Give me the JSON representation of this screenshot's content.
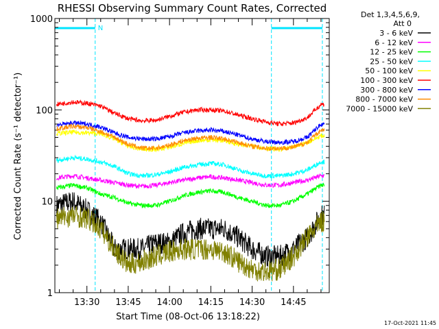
{
  "chart_data": {
    "type": "line",
    "title": "RHESSI Observing Summary Count Rates, Corrected",
    "xlabel": "Start Time (08-Oct-06 13:18:22)",
    "ylabel": "Corrected Count Rate (s⁻¹ detector⁻¹)",
    "yscale": "log",
    "ylim": [
      1,
      1000
    ],
    "xlim": [
      "13:18:22",
      "14:58:00"
    ],
    "x_tick_labels": [
      "13:30",
      "13:45",
      "14:00",
      "14:15",
      "14:30",
      "14:45"
    ],
    "y_tick_labels": [
      "1",
      "10",
      "100",
      "1000"
    ],
    "legend_position": "top-right",
    "legend_header": [
      "Det 1,3,4,5,6,9,",
      "Att 0"
    ],
    "footer_date": "17-Oct-2021 11:45",
    "annotations": [
      {
        "label": "N",
        "time": "13:33:00"
      }
    ],
    "night_intervals": [
      {
        "start": "13:18:22",
        "end": "13:33:00"
      },
      {
        "start": "14:37:00",
        "end": "14:55:30"
      }
    ],
    "x": [
      "13:19",
      "13:25",
      "13:30",
      "13:35",
      "13:40",
      "13:45",
      "13:50",
      "13:55",
      "14:00",
      "14:05",
      "14:10",
      "14:15",
      "14:20",
      "14:25",
      "14:30",
      "14:35",
      "14:40",
      "14:45",
      "14:50",
      "14:55"
    ],
    "series": [
      {
        "name": "3 - 6 keV",
        "color": "#000000",
        "values": [
          9,
          10,
          8,
          6,
          3,
          3,
          3,
          3.5,
          3.5,
          4.5,
          5,
          5,
          5,
          4,
          3,
          2.5,
          2.5,
          3,
          4,
          7
        ]
      },
      {
        "name": "6 - 12 keV",
        "color": "#ff00ff",
        "values": [
          18,
          19,
          18,
          17,
          16,
          15,
          14.5,
          15,
          16,
          17,
          18,
          18.5,
          18,
          17,
          16,
          15,
          15,
          16,
          17,
          19
        ]
      },
      {
        "name": "12 - 25 keV",
        "color": "#00ff00",
        "values": [
          14,
          15,
          14,
          12,
          11,
          9.5,
          9,
          9,
          10,
          11.5,
          12.5,
          13,
          12.5,
          11,
          10,
          9,
          9,
          10,
          12,
          15
        ]
      },
      {
        "name": "25 - 50 keV",
        "color": "#00ffff",
        "values": [
          28,
          30,
          29,
          27,
          24,
          20,
          19,
          19.5,
          21,
          23.5,
          25,
          26,
          25,
          22,
          20,
          19,
          19,
          20,
          22,
          27
        ]
      },
      {
        "name": "50 - 100 keV",
        "color": "#ffff00",
        "values": [
          55,
          57,
          56,
          55,
          48,
          40,
          37,
          37,
          39,
          43,
          46,
          47,
          46,
          42,
          40,
          38,
          37,
          39,
          44,
          52
        ]
      },
      {
        "name": "100 - 300 keV",
        "color": "#ff0000",
        "values": [
          115,
          122,
          118,
          110,
          92,
          80,
          76,
          77,
          85,
          94,
          100,
          100,
          97,
          88,
          80,
          74,
          70,
          72,
          82,
          115
        ]
      },
      {
        "name": "300 - 800 keV",
        "color": "#0000ff",
        "values": [
          68,
          72,
          70,
          65,
          56,
          50,
          48,
          48,
          51,
          56,
          59,
          60,
          58,
          53,
          48,
          45,
          44,
          45,
          50,
          70
        ]
      },
      {
        "name": "800 - 7000 keV",
        "color": "#ff8c00",
        "values": [
          62,
          66,
          64,
          58,
          50,
          42,
          38,
          38,
          41,
          46,
          49,
          50,
          48,
          44,
          40,
          38,
          38,
          39,
          44,
          60
        ]
      },
      {
        "name": "7000 - 15000 keV",
        "color": "#808000",
        "values": [
          6.5,
          7,
          6.5,
          5,
          3,
          2,
          2.2,
          2.5,
          2.8,
          3,
          3,
          3,
          2.8,
          2.2,
          1.8,
          1.7,
          1.8,
          2.5,
          4,
          6
        ]
      }
    ]
  }
}
